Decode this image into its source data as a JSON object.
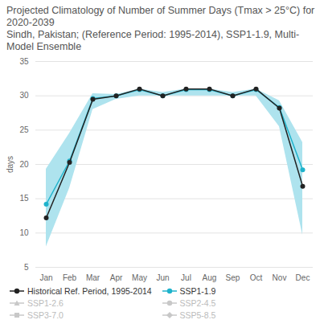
{
  "chart_data": {
    "type": "line",
    "title": "Projected Climatology of Number of Summer Days (Tmax > 25°C) for 2020-2039",
    "subtitle": "Sindh, Pakistan; (Reference Period: 1995-2014), SSP1-1.9, Multi-Model Ensemble",
    "y_label": "days",
    "categories": [
      "Jan",
      "Feb",
      "Mar",
      "Apr",
      "May",
      "Jun",
      "Jul",
      "Aug",
      "Sep",
      "Oct",
      "Nov",
      "Dec"
    ],
    "series": [
      {
        "name": "Historical Ref. Period, 1995-2014",
        "color": "#222222",
        "marker": "circle",
        "values": [
          12.2,
          20.3,
          29.5,
          30,
          31,
          30,
          31,
          31,
          30,
          31,
          28.2,
          16.8
        ]
      },
      {
        "name": "SSP1-1.9",
        "color": "#1fb3cc",
        "marker": "circle",
        "values": [
          14.2,
          20.5,
          29.6,
          30,
          30.9,
          30,
          30.9,
          30.9,
          30,
          30.9,
          28.3,
          19.2
        ]
      },
      {
        "name": "SSP1-2.6",
        "color": "#c8c8c8",
        "marker": "triangle",
        "values": [
          null,
          null,
          null,
          null,
          null,
          null,
          null,
          null,
          null,
          null,
          null,
          null
        ]
      },
      {
        "name": "SSP2-4.5",
        "color": "#c8c8c8",
        "marker": "circle",
        "values": [
          null,
          null,
          null,
          null,
          null,
          null,
          null,
          null,
          null,
          null,
          null,
          null
        ]
      },
      {
        "name": "SSP3-7.0",
        "color": "#c8c8c8",
        "marker": "square",
        "values": [
          null,
          null,
          null,
          null,
          null,
          null,
          null,
          null,
          null,
          null,
          null,
          null
        ]
      },
      {
        "name": "SSP5-8.5",
        "color": "#c8c8c8",
        "marker": "diamond",
        "values": [
          null,
          null,
          null,
          null,
          null,
          null,
          null,
          null,
          null,
          null,
          null,
          null
        ]
      }
    ],
    "range": {
      "color": "#aee3ee",
      "low": [
        8,
        16.5,
        28,
        29.5,
        30,
        30,
        30,
        30,
        30,
        30,
        25.5,
        9.7
      ],
      "high": [
        19.3,
        24.5,
        30.3,
        30.2,
        31,
        30.5,
        31,
        31,
        30.5,
        31,
        29.3,
        23.2
      ]
    },
    "ylim": [
      5,
      35
    ],
    "yticks": [
      5,
      10,
      15,
      20,
      25,
      30,
      35
    ],
    "grid": true,
    "legend": "bottom"
  }
}
